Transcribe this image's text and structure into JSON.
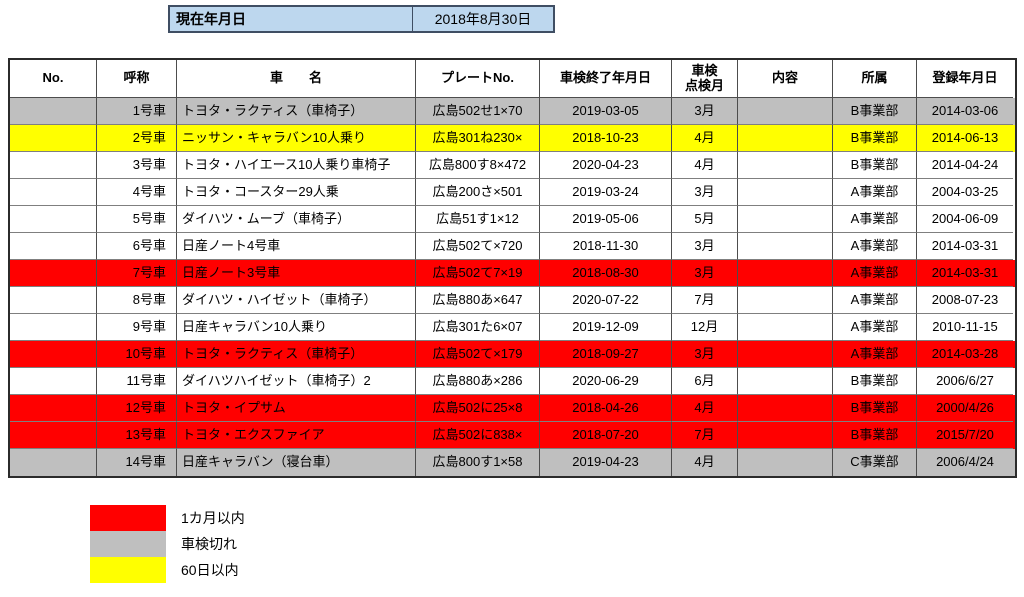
{
  "topbar": {
    "label": "現在年月日",
    "value": "2018年8月30日"
  },
  "colors": {
    "topbar_fill": "#BDD7EE",
    "red": "#FF0000",
    "gray": "#BFBFBF",
    "yellow": "#FFFF00",
    "white": "#FFFFFF"
  },
  "table": {
    "headers": {
      "no": "No.",
      "name": "呼称",
      "model": "車　　名",
      "plate": "プレートNo.",
      "end": "車検終了年月日",
      "month": "車検\n点検月",
      "content": "内容",
      "dept": "所属",
      "reg": "登録年月日"
    },
    "rows": [
      {
        "no": "",
        "name": "1号車",
        "model": "トヨタ・ラクティス（車椅子）",
        "plate": "広島502せ1×70",
        "end": "2019-03-05",
        "month": "3月",
        "content": "",
        "dept": "B事業部",
        "reg": "2014-03-06",
        "status": "gray"
      },
      {
        "no": "",
        "name": "2号車",
        "model": "ニッサン・キャラバン10人乗り",
        "plate": "広島301ね230×",
        "end": "2018-10-23",
        "month": "4月",
        "content": "",
        "dept": "B事業部",
        "reg": "2014-06-13",
        "status": "yellow"
      },
      {
        "no": "",
        "name": "3号車",
        "model": "トヨタ・ハイエース10人乗り車椅子",
        "plate": "広島800す8×472",
        "end": "2020-04-23",
        "month": "4月",
        "content": "",
        "dept": "B事業部",
        "reg": "2014-04-24",
        "status": "white"
      },
      {
        "no": "",
        "name": "4号車",
        "model": "トヨタ・コースター29人乗",
        "plate": "広島200さ×501",
        "end": "2019-03-24",
        "month": "3月",
        "content": "",
        "dept": "A事業部",
        "reg": "2004-03-25",
        "status": "white"
      },
      {
        "no": "",
        "name": "5号車",
        "model": "ダイハツ・ムーブ（車椅子）",
        "plate": "広島51す1×12",
        "end": "2019-05-06",
        "month": "5月",
        "content": "",
        "dept": "A事業部",
        "reg": "2004-06-09",
        "status": "white"
      },
      {
        "no": "",
        "name": "6号車",
        "model": "日産ノート4号車",
        "plate": "広島502て×720",
        "end": "2018-11-30",
        "month": "3月",
        "content": "",
        "dept": "A事業部",
        "reg": "2014-03-31",
        "status": "white"
      },
      {
        "no": "",
        "name": "7号車",
        "model": "日産ノート3号車",
        "plate": "広島502て7×19",
        "end": "2018-08-30",
        "month": "3月",
        "content": "",
        "dept": "A事業部",
        "reg": "2014-03-31",
        "status": "red"
      },
      {
        "no": "",
        "name": "8号車",
        "model": "ダイハツ・ハイゼット（車椅子）",
        "plate": "広島880あ×647",
        "end": "2020-07-22",
        "month": "7月",
        "content": "",
        "dept": "A事業部",
        "reg": "2008-07-23",
        "status": "white"
      },
      {
        "no": "",
        "name": "9号車",
        "model": "日産キャラバン10人乗り",
        "plate": "広島301た6×07",
        "end": "2019-12-09",
        "month": "12月",
        "content": "",
        "dept": "A事業部",
        "reg": "2010-11-15",
        "status": "white"
      },
      {
        "no": "",
        "name": "10号車",
        "model": "トヨタ・ラクティス（車椅子）",
        "plate": "広島502て×179",
        "end": "2018-09-27",
        "month": "3月",
        "content": "",
        "dept": "A事業部",
        "reg": "2014-03-28",
        "status": "red"
      },
      {
        "no": "",
        "name": "11号車",
        "model": "ダイハツハイゼット（車椅子）2",
        "plate": "広島880あ×286",
        "end": "2020-06-29",
        "month": "6月",
        "content": "",
        "dept": "B事業部",
        "reg": "2006/6/27",
        "status": "white"
      },
      {
        "no": "",
        "name": "12号車",
        "model": "トヨタ・イプサム",
        "plate": "広島502に25×8",
        "end": "2018-04-26",
        "month": "4月",
        "content": "",
        "dept": "B事業部",
        "reg": "2000/4/26",
        "status": "red"
      },
      {
        "no": "",
        "name": "13号車",
        "model": "トヨタ・エクスファイア",
        "plate": "広島502に838×",
        "end": "2018-07-20",
        "month": "7月",
        "content": "",
        "dept": "B事業部",
        "reg": "2015/7/20",
        "status": "red"
      },
      {
        "no": "",
        "name": "14号車",
        "model": "日産キャラバン（寝台車）",
        "plate": "広島800す1×58",
        "end": "2019-04-23",
        "month": "4月",
        "content": "",
        "dept": "C事業部",
        "reg": "2006/4/24",
        "status": "gray"
      }
    ]
  },
  "legend": [
    {
      "label": "1カ月以内",
      "status": "red"
    },
    {
      "label": "車検切れ",
      "status": "gray"
    },
    {
      "label": "60日以内",
      "status": "yellow"
    }
  ]
}
